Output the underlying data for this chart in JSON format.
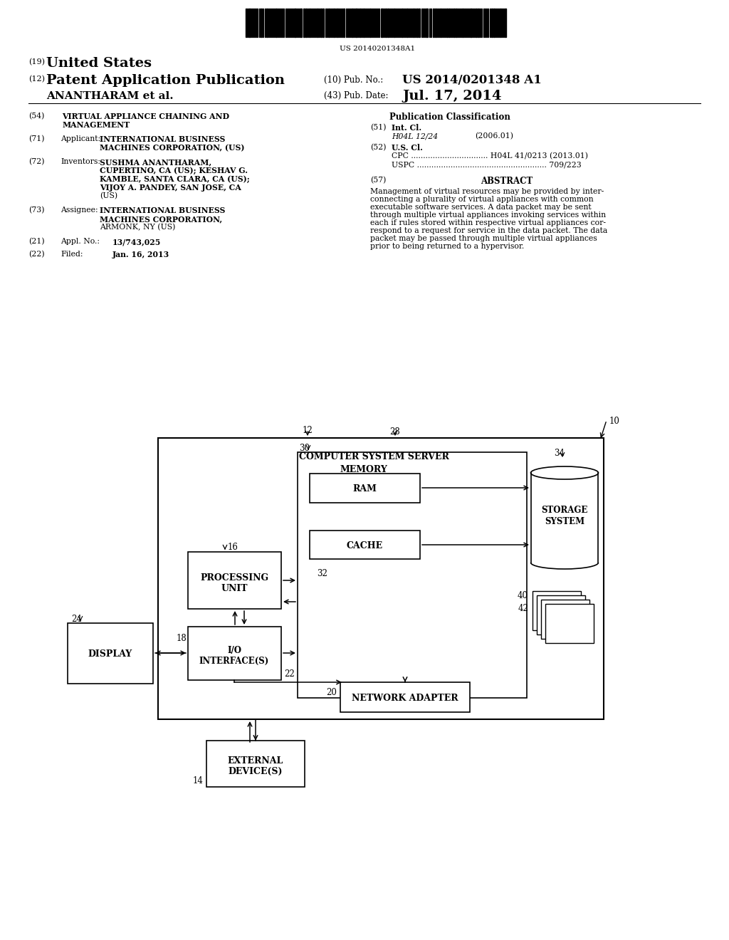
{
  "background_color": "#ffffff",
  "page_width": 10.24,
  "page_height": 13.2,
  "barcode_text": "US 20140201348A1",
  "header": {
    "country_num": "(19)",
    "country": "United States",
    "doc_type_num": "(12)",
    "doc_type": "Patent Application Publication",
    "pub_num_label": "(10) Pub. No.:",
    "pub_num": "US 2014/0201348 A1",
    "author": "ANANTHARAM et al.",
    "pub_date_label": "(43) Pub. Date:",
    "pub_date": "Jul. 17, 2014"
  },
  "left_col": {
    "title_num": "(54)",
    "title_line1": "VIRTUAL APPLIANCE CHAINING AND",
    "title_line2": "MANAGEMENT",
    "applicant_num": "(71)",
    "applicant_label": "Applicant:",
    "applicant_line1": "INTERNATIONAL BUSINESS",
    "applicant_line2": "MACHINES CORPORATION, (US)",
    "inventors_num": "(72)",
    "inventors_label": "Inventors:",
    "inv_line1": "SUSHMA ANANTHARAM,",
    "inv_line2": "CUPERTINO, CA (US); KESHAV G.",
    "inv_line3": "KAMBLE, SANTA CLARA, CA (US);",
    "inv_line4": "VIJOY A. PANDEY, SAN JOSE, CA",
    "inv_line5": "(US)",
    "assignee_num": "(73)",
    "assignee_label": "Assignee:",
    "asgn_line1": "INTERNATIONAL BUSINESS",
    "asgn_line2": "MACHINES CORPORATION,",
    "asgn_line3": "ARMONK, NY (US)",
    "appl_num": "(21)",
    "appl_label": "Appl. No.:",
    "appl_text": "13/743,025",
    "filed_num": "(22)",
    "filed_label": "Filed:",
    "filed_text": "Jan. 16, 2013"
  },
  "right_col": {
    "pub_class_title": "Publication Classification",
    "int_cl_num": "(51)",
    "int_cl_label": "Int. Cl.",
    "int_cl_class": "H04L 12/24",
    "int_cl_year": "(2006.01)",
    "us_cl_num": "(52)",
    "us_cl_label": "U.S. Cl.",
    "cpc_line": "CPC ................................ H04L 41/0213 (2013.01)",
    "uspc_line": "USPC ...................................................... 709/223",
    "abstract_num": "(57)",
    "abstract_title": "ABSTRACT",
    "abstract_lines": [
      "Management of virtual resources may be provided by inter-",
      "connecting a plurality of virtual appliances with common",
      "executable software services. A data packet may be sent",
      "through multiple virtual appliances invoking services within",
      "each if rules stored within respective virtual appliances cor-",
      "respond to a request for service in the data packet. The data",
      "packet may be passed through multiple virtual appliances",
      "prior to being returned to a hypervisor."
    ]
  }
}
